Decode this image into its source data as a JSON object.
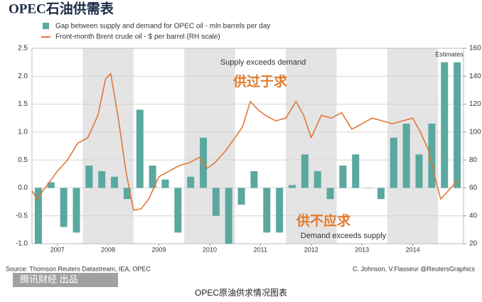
{
  "chart_data": {
    "type": "bar-line",
    "title": "OPEC石油供需表",
    "caption": "OPEC原油供求情况图表",
    "watermark": "腾讯财经 出品",
    "source": "Source: Thomson Reuters Datastream, IEA, OPEC",
    "credit": "C. Johnson, V.Flasseur @ReutersGraphics",
    "annotations": [
      "Supply exceeds demand",
      "供过于求",
      "Estimates",
      "供不应求",
      "Demand exceeds supply"
    ],
    "xlim": [
      2007,
      2015.5
    ],
    "xticks": [
      {
        "value": 2007.5,
        "label": "2007"
      },
      {
        "value": 2008.5,
        "label": "2008"
      },
      {
        "value": 2009.5,
        "label": "2009"
      },
      {
        "value": 2010.5,
        "label": "2010"
      },
      {
        "value": 2011.5,
        "label": "2011"
      },
      {
        "value": 2012.5,
        "label": "2012"
      },
      {
        "value": 2013.5,
        "label": "2013"
      },
      {
        "value": 2014.5,
        "label": "2014"
      }
    ],
    "ylim": [
      -1.0,
      2.5
    ],
    "yticks": [
      {
        "value": -1.0,
        "label": "-1.0"
      },
      -0.5,
      {
        "value": 0,
        "label": "0.0"
      },
      0.5,
      {
        "value": 1.0,
        "label": "1.0"
      },
      1.5,
      {
        "value": 2.0,
        "label": "2.0"
      },
      2.5
    ],
    "y2lim": [
      20,
      160
    ],
    "y2ticks": [
      20,
      40,
      60,
      80,
      100,
      120,
      140,
      160
    ],
    "grid": true,
    "series": [
      {
        "name": "Gap between supply and demand for OPEC oil - mln barrels per day",
        "color": "#5aa8a0",
        "kind": "bar",
        "x": [
          2007.125,
          2007.375,
          2007.625,
          2007.875,
          2008.125,
          2008.375,
          2008.625,
          2008.875,
          2009.125,
          2009.375,
          2009.625,
          2009.875,
          2010.125,
          2010.375,
          2010.625,
          2010.875,
          2011.125,
          2011.375,
          2011.625,
          2011.875,
          2012.125,
          2012.375,
          2012.625,
          2012.875,
          2013.125,
          2013.375,
          2013.625,
          2013.875,
          2014.125,
          2014.375,
          2014.625,
          2014.875,
          2015.125,
          2015.375
        ],
        "values": [
          -1.0,
          0.1,
          -0.7,
          -0.8,
          0.4,
          0.3,
          0.2,
          -0.2,
          1.4,
          0.4,
          0.15,
          -0.8,
          0.2,
          0.9,
          -0.5,
          -1.0,
          -0.3,
          0.3,
          -0.8,
          -0.8,
          0.05,
          0.6,
          0.3,
          -0.2,
          0.4,
          0.6,
          0.0,
          -0.2,
          0.9,
          1.15,
          0.6,
          1.15,
          2.25,
          2.25
        ]
      },
      {
        "name": "Front-month Brent crude oil - $ per barrel (RH scale)",
        "color": "#e0773a",
        "kind": "line",
        "axis": "y2",
        "x": [
          2007.0,
          2007.1,
          2007.3,
          2007.5,
          2007.7,
          2007.9,
          2008.1,
          2008.3,
          2008.45,
          2008.55,
          2008.7,
          2008.85,
          2009.0,
          2009.15,
          2009.3,
          2009.5,
          2009.7,
          2009.9,
          2010.1,
          2010.3,
          2010.45,
          2010.6,
          2010.8,
          2011.0,
          2011.15,
          2011.3,
          2011.45,
          2011.6,
          2011.8,
          2012.0,
          2012.2,
          2012.35,
          2012.5,
          2012.7,
          2012.9,
          2013.1,
          2013.3,
          2013.5,
          2013.7,
          2013.9,
          2014.1,
          2014.3,
          2014.5,
          2014.65,
          2014.8,
          2014.95,
          2015.05,
          2015.15,
          2015.3,
          2015.42
        ],
        "values": [
          58,
          52,
          62,
          72,
          80,
          92,
          96,
          112,
          138,
          142,
          110,
          72,
          44,
          45,
          52,
          68,
          72,
          76,
          78,
          82,
          74,
          78,
          86,
          96,
          104,
          122,
          116,
          112,
          108,
          110,
          122,
          112,
          96,
          112,
          110,
          114,
          102,
          106,
          110,
          108,
          106,
          108,
          110,
          100,
          88,
          66,
          52,
          56,
          62,
          66
        ]
      }
    ]
  }
}
